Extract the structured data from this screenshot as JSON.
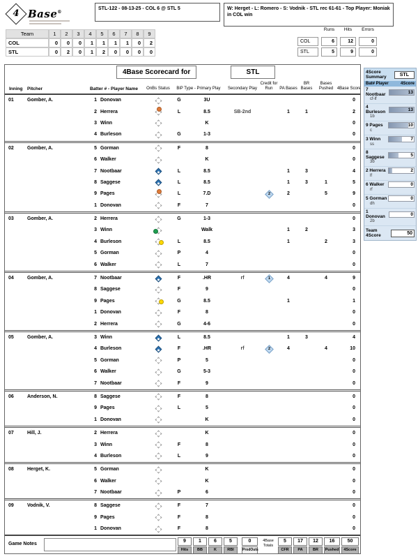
{
  "header": {
    "logo": {
      "num": "4",
      "text": "Base",
      "reg": "®"
    },
    "game_line": "STL-122 - 08-13-25 - COL 6 @ STL 5",
    "result_line": "W: Herget - L: Romero - S: Vodnik - STL rec 61-61 - Top Player: Moniak in COL win"
  },
  "linescore": {
    "team_header": "Team",
    "innings": [
      "1",
      "2",
      "3",
      "4",
      "5",
      "6",
      "7",
      "8",
      "9"
    ],
    "rows": [
      {
        "team": "COL",
        "scores": [
          0,
          0,
          0,
          1,
          1,
          1,
          1,
          0,
          2
        ]
      },
      {
        "team": "STL",
        "scores": [
          0,
          2,
          0,
          1,
          2,
          0,
          0,
          0,
          0
        ]
      }
    ]
  },
  "rhe": {
    "labels": [
      "Runs",
      "Hits",
      "Errors"
    ],
    "rows": [
      {
        "team": "COL",
        "values": [
          6,
          12,
          0
        ]
      },
      {
        "team": "STL",
        "values": [
          5,
          9,
          0
        ]
      }
    ]
  },
  "scorecard": {
    "title": "4Base Scorecard for",
    "team": "STL",
    "columns": [
      "Inning",
      "Pitcher",
      "Batter # - Player Name",
      "OnBs Status",
      "BiP Type - Primary Play",
      "Secondary Play",
      "Credit for Run",
      "PA Bases",
      "BR Bases",
      "Bases Pushed",
      "4Base Score"
    ],
    "innings": [
      {
        "inning": "01",
        "pitcher": "Gomber, A.",
        "batters": [
          {
            "num": 1,
            "player": "Donovan",
            "status": "",
            "bip": "G",
            "primary": "3U",
            "secondary": "",
            "cfr": "",
            "pa": "",
            "br": "",
            "pushed": "",
            "score": 0
          },
          {
            "num": 2,
            "player": "Herrera",
            "status": "on2",
            "bip": "L",
            "primary": "8.5",
            "secondary": "SB-2nd",
            "cfr": "",
            "pa": 1,
            "br": 1,
            "pushed": "",
            "score": 2
          },
          {
            "num": 3,
            "player": "Winn",
            "status": "",
            "bip": "",
            "primary": "K",
            "secondary": "",
            "cfr": "",
            "pa": "",
            "br": "",
            "pushed": "",
            "score": 0
          },
          {
            "num": 4,
            "player": "Burleson",
            "status": "",
            "bip": "G",
            "primary": "1-3",
            "secondary": "",
            "cfr": "",
            "pa": "",
            "br": "",
            "pushed": "",
            "score": 0
          }
        ]
      },
      {
        "inning": "02",
        "pitcher": "Gomber, A.",
        "batters": [
          {
            "num": 5,
            "player": "Gorman",
            "status": "",
            "bip": "F",
            "primary": "8",
            "secondary": "",
            "cfr": "",
            "pa": "",
            "br": "",
            "pushed": "",
            "score": 0
          },
          {
            "num": 6,
            "player": "Walker",
            "status": "",
            "bip": "",
            "primary": "K",
            "secondary": "",
            "cfr": "",
            "pa": "",
            "br": "",
            "pushed": "",
            "score": 0
          },
          {
            "num": 7,
            "player": "Nootbaar",
            "status": "scored",
            "bip": "L",
            "primary": "8.5",
            "secondary": "",
            "cfr": "",
            "pa": 1,
            "br": 3,
            "pushed": "",
            "score": 4
          },
          {
            "num": 8,
            "player": "Saggese",
            "status": "scored",
            "bip": "L",
            "primary": "8.5",
            "secondary": "",
            "cfr": "",
            "pa": 1,
            "br": 3,
            "pushed": 1,
            "score": 5
          },
          {
            "num": 9,
            "player": "Pages",
            "status": "on2",
            "bip": "L",
            "primary": "7.D",
            "secondary": "",
            "cfr": 2,
            "pa": 2,
            "br": "",
            "pushed": 5,
            "score": 9
          },
          {
            "num": 1,
            "player": "Donovan",
            "status": "",
            "bip": "F",
            "primary": "7",
            "secondary": "",
            "cfr": "",
            "pa": "",
            "br": "",
            "pushed": "",
            "score": 0
          }
        ]
      },
      {
        "inning": "03",
        "pitcher": "Gomber, A.",
        "batters": [
          {
            "num": 2,
            "player": "Herrera",
            "status": "",
            "bip": "G",
            "primary": "1-3",
            "secondary": "",
            "cfr": "",
            "pa": "",
            "br": "",
            "pushed": "",
            "score": 0
          },
          {
            "num": 3,
            "player": "Winn",
            "status": "on3",
            "bip": "",
            "primary": "Walk",
            "secondary": "",
            "cfr": "",
            "pa": 1,
            "br": 2,
            "pushed": "",
            "score": 3
          },
          {
            "num": 4,
            "player": "Burleson",
            "status": "on1",
            "bip": "L",
            "primary": "8.5",
            "secondary": "",
            "cfr": "",
            "pa": 1,
            "br": "",
            "pushed": 2,
            "score": 3
          },
          {
            "num": 5,
            "player": "Gorman",
            "status": "",
            "bip": "P",
            "primary": "4",
            "secondary": "",
            "cfr": "",
            "pa": "",
            "br": "",
            "pushed": "",
            "score": 0
          },
          {
            "num": 6,
            "player": "Walker",
            "status": "",
            "bip": "L",
            "primary": "7",
            "secondary": "",
            "cfr": "",
            "pa": "",
            "br": "",
            "pushed": "",
            "score": 0
          }
        ]
      },
      {
        "inning": "04",
        "pitcher": "Gomber, A.",
        "batters": [
          {
            "num": 7,
            "player": "Nootbaar",
            "status": "scored",
            "bip": "F",
            "primary": ".HR",
            "secondary": "rf",
            "cfr": 1,
            "pa": 4,
            "br": "",
            "pushed": 4,
            "score": 9
          },
          {
            "num": 8,
            "player": "Saggese",
            "status": "",
            "bip": "F",
            "primary": "9",
            "secondary": "",
            "cfr": "",
            "pa": "",
            "br": "",
            "pushed": "",
            "score": 0
          },
          {
            "num": 9,
            "player": "Pages",
            "status": "on1",
            "bip": "G",
            "primary": "8.5",
            "secondary": "",
            "cfr": "",
            "pa": 1,
            "br": "",
            "pushed": "",
            "score": 1
          },
          {
            "num": 1,
            "player": "Donovan",
            "status": "",
            "bip": "F",
            "primary": "8",
            "secondary": "",
            "cfr": "",
            "pa": "",
            "br": "",
            "pushed": "",
            "score": 0
          },
          {
            "num": 2,
            "player": "Herrera",
            "status": "",
            "bip": "G",
            "primary": "4-6",
            "secondary": "",
            "cfr": "",
            "pa": "",
            "br": "",
            "pushed": "",
            "score": 0
          }
        ]
      },
      {
        "inning": "05",
        "pitcher": "Gomber, A.",
        "batters": [
          {
            "num": 3,
            "player": "Winn",
            "status": "scored",
            "bip": "L",
            "primary": "8.5",
            "secondary": "",
            "cfr": "",
            "pa": 1,
            "br": 3,
            "pushed": "",
            "score": 4
          },
          {
            "num": 4,
            "player": "Burleson",
            "status": "scored",
            "bip": "F",
            "primary": ".HR",
            "secondary": "rf",
            "cfr": 2,
            "pa": 4,
            "br": "",
            "pushed": 4,
            "score": 10
          },
          {
            "num": 5,
            "player": "Gorman",
            "status": "",
            "bip": "P",
            "primary": "5",
            "secondary": "",
            "cfr": "",
            "pa": "",
            "br": "",
            "pushed": "",
            "score": 0
          },
          {
            "num": 6,
            "player": "Walker",
            "status": "",
            "bip": "G",
            "primary": "5-3",
            "secondary": "",
            "cfr": "",
            "pa": "",
            "br": "",
            "pushed": "",
            "score": 0
          },
          {
            "num": 7,
            "player": "Nootbaar",
            "status": "",
            "bip": "F",
            "primary": "9",
            "secondary": "",
            "cfr": "",
            "pa": "",
            "br": "",
            "pushed": "",
            "score": 0
          }
        ]
      },
      {
        "inning": "06",
        "pitcher": "Anderson, N.",
        "batters": [
          {
            "num": 8,
            "player": "Saggese",
            "status": "",
            "bip": "F",
            "primary": "8",
            "secondary": "",
            "cfr": "",
            "pa": "",
            "br": "",
            "pushed": "",
            "score": 0
          },
          {
            "num": 9,
            "player": "Pages",
            "status": "",
            "bip": "L",
            "primary": "5",
            "secondary": "",
            "cfr": "",
            "pa": "",
            "br": "",
            "pushed": "",
            "score": 0
          },
          {
            "num": 1,
            "player": "Donovan",
            "status": "",
            "bip": "",
            "primary": "K",
            "secondary": "",
            "cfr": "",
            "pa": "",
            "br": "",
            "pushed": "",
            "score": 0
          }
        ]
      },
      {
        "inning": "07",
        "pitcher": "Hill, J.",
        "batters": [
          {
            "num": 2,
            "player": "Herrera",
            "status": "",
            "bip": "",
            "primary": "K",
            "secondary": "",
            "cfr": "",
            "pa": "",
            "br": "",
            "pushed": "",
            "score": 0
          },
          {
            "num": 3,
            "player": "Winn",
            "status": "",
            "bip": "F",
            "primary": "8",
            "secondary": "",
            "cfr": "",
            "pa": "",
            "br": "",
            "pushed": "",
            "score": 0
          },
          {
            "num": 4,
            "player": "Burleson",
            "status": "",
            "bip": "L",
            "primary": "9",
            "secondary": "",
            "cfr": "",
            "pa": "",
            "br": "",
            "pushed": "",
            "score": 0
          }
        ]
      },
      {
        "inning": "08",
        "pitcher": "Herget, K.",
        "batters": [
          {
            "num": 5,
            "player": "Gorman",
            "status": "",
            "bip": "",
            "primary": "K",
            "secondary": "",
            "cfr": "",
            "pa": "",
            "br": "",
            "pushed": "",
            "score": 0
          },
          {
            "num": 6,
            "player": "Walker",
            "status": "",
            "bip": "",
            "primary": "K",
            "secondary": "",
            "cfr": "",
            "pa": "",
            "br": "",
            "pushed": "",
            "score": 0
          },
          {
            "num": 7,
            "player": "Nootbaar",
            "status": "",
            "bip": "P",
            "primary": "6",
            "secondary": "",
            "cfr": "",
            "pa": "",
            "br": "",
            "pushed": "",
            "score": 0
          }
        ]
      },
      {
        "inning": "09",
        "pitcher": "Vodnik, V.",
        "batters": [
          {
            "num": 8,
            "player": "Saggese",
            "status": "",
            "bip": "F",
            "primary": "7",
            "secondary": "",
            "cfr": "",
            "pa": "",
            "br": "",
            "pushed": "",
            "score": 0
          },
          {
            "num": 9,
            "player": "Pages",
            "status": "",
            "bip": "F",
            "primary": "8",
            "secondary": "",
            "cfr": "",
            "pa": "",
            "br": "",
            "pushed": "",
            "score": 0
          },
          {
            "num": 1,
            "player": "Donovan",
            "status": "",
            "bip": "F",
            "primary": "8",
            "secondary": "",
            "cfr": "",
            "pa": "",
            "br": "",
            "pushed": "",
            "score": 0
          }
        ]
      }
    ]
  },
  "footer": {
    "game_notes_label": "Game Notes",
    "stats": [
      {
        "label": "Hits",
        "value": "9"
      },
      {
        "label": "BB",
        "value": "1"
      },
      {
        "label": "K",
        "value": "6"
      },
      {
        "label": "RBI",
        "value": "5"
      }
    ],
    "prodouts": {
      "label": "ProdOuts",
      "value": "0"
    },
    "totals_label": "4Base Totals",
    "totals": [
      {
        "label": "CFR",
        "value": "5"
      },
      {
        "label": "PA",
        "value": "17"
      },
      {
        "label": "BR",
        "value": "12"
      },
      {
        "label": "Pushed",
        "value": "16"
      },
      {
        "label": "4Score",
        "value": "50"
      }
    ]
  },
  "summary": {
    "title": "4Score Summary",
    "team": "STL",
    "col1": "Bat# Player",
    "col2": "4Score",
    "max_score": 13,
    "players": [
      {
        "num": 7,
        "name": "Nootbaar",
        "pos": "cf-lf",
        "score": 13
      },
      {
        "num": 4,
        "name": "Burleson",
        "pos": "1b",
        "score": 13
      },
      {
        "num": 9,
        "name": "Pages",
        "pos": "c",
        "score": 10
      },
      {
        "num": 3,
        "name": "Winn",
        "pos": "ss",
        "score": 7
      },
      {
        "num": 8,
        "name": "Saggese",
        "pos": "3b",
        "score": 5
      },
      {
        "num": 2,
        "name": "Herrera",
        "pos": "lf",
        "score": 2
      },
      {
        "num": 6,
        "name": "Walker",
        "pos": "rf",
        "score": 0
      },
      {
        "num": 5,
        "name": "Gorman",
        "pos": "dh",
        "score": 0
      },
      {
        "num": 1,
        "name": "Donovan",
        "pos": "2b",
        "score": 0
      }
    ],
    "team_total_label": "Team 4Score",
    "team_total": 50
  },
  "colors": {
    "scored_diamond": "#2e75b6",
    "on_first": "#ffd900",
    "on_second": "#e07b39",
    "on_third": "#1e9e50",
    "cfr_badge_bg": "#bdd7ee",
    "summary_bar": "#8496b0",
    "summary_bar_light": "#b4c2d4"
  }
}
